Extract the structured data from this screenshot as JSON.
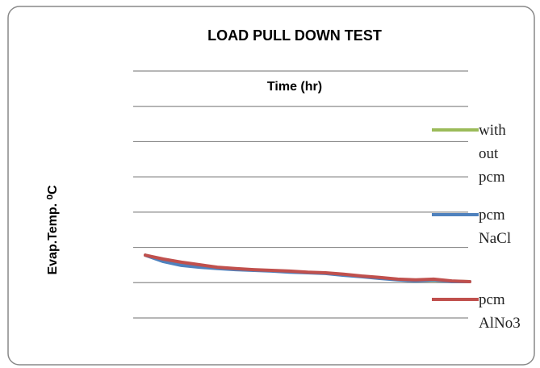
{
  "chart_data": {
    "type": "line",
    "title": "LOAD PULL DOWN TEST",
    "x_label": "Time (hr)",
    "y_label": "Evap.Temp. ⁰C",
    "categories": [
      null,
      null,
      null,
      null,
      null,
      null,
      null,
      null,
      null,
      null,
      null,
      null,
      null,
      null,
      null,
      null,
      null,
      null,
      null
    ],
    "series": [
      {
        "name": "with out pcm",
        "color": "#9bbb59",
        "values": [
          1.78,
          1.62,
          1.52,
          1.46,
          1.42,
          1.39,
          1.36,
          1.34,
          1.32,
          1.29,
          1.27,
          1.22,
          1.18,
          1.14,
          1.09,
          1.06,
          1.07,
          1.04,
          1.03
        ]
      },
      {
        "name": "pcm NaCl",
        "color": "#4f81bd",
        "values": [
          1.78,
          1.6,
          1.49,
          1.44,
          1.4,
          1.37,
          1.35,
          1.33,
          1.3,
          1.28,
          1.26,
          1.21,
          1.17,
          1.12,
          1.08,
          1.05,
          1.08,
          1.03,
          1.03
        ]
      },
      {
        "name": "pcm AlNo3",
        "color": "#c0504d",
        "values": [
          1.78,
          1.67,
          1.58,
          1.51,
          1.44,
          1.4,
          1.37,
          1.35,
          1.33,
          1.3,
          1.28,
          1.24,
          1.19,
          1.15,
          1.1,
          1.08,
          1.1,
          1.05,
          1.03
        ]
      }
    ],
    "ylim": [
      0,
      7
    ],
    "yticks": [
      0,
      1,
      2,
      3,
      4,
      5,
      6,
      7
    ],
    "grid": true,
    "legend": "right"
  }
}
